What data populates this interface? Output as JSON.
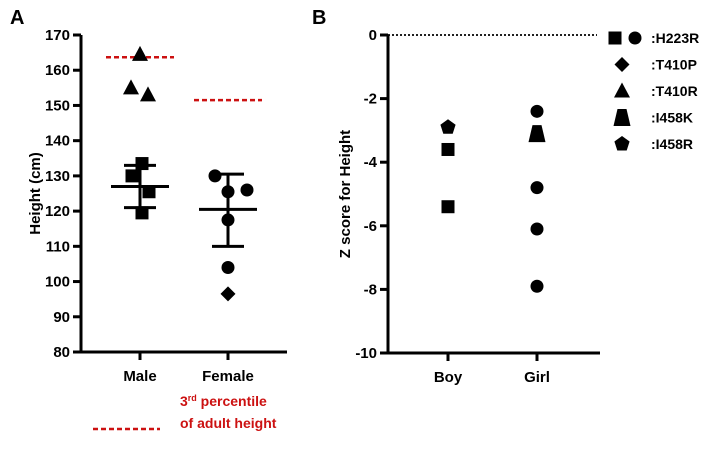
{
  "chart_data": [
    {
      "panel": "A",
      "type": "scatter",
      "ylabel": "Height (cm)",
      "xlabel": "",
      "ylim": [
        80,
        170
      ],
      "yticks": [
        "80",
        "90",
        "100",
        "110",
        "120",
        "130",
        "140",
        "150",
        "160",
        "170"
      ],
      "categories": [
        "Male",
        "Female"
      ],
      "groups": [
        {
          "category": "Male",
          "mean": 127,
          "error_upper": 133,
          "error_lower": 121,
          "reference_line": 163.7,
          "points": [
            {
              "shape": "triangle",
              "value": 164.5
            },
            {
              "shape": "triangle",
              "value": 155
            },
            {
              "shape": "triangle",
              "value": 153
            },
            {
              "shape": "square",
              "value": 133.5
            },
            {
              "shape": "square",
              "value": 130
            },
            {
              "shape": "square",
              "value": 125.5
            },
            {
              "shape": "square",
              "value": 119.5
            }
          ]
        },
        {
          "category": "Female",
          "mean": 120.5,
          "error_upper": 130.5,
          "error_lower": 110,
          "reference_line": 151.5,
          "points": [
            {
              "shape": "circle",
              "value": 130
            },
            {
              "shape": "circle",
              "value": 125.5
            },
            {
              "shape": "circle",
              "value": 126
            },
            {
              "shape": "circle",
              "value": 117.5
            },
            {
              "shape": "circle",
              "value": 104
            },
            {
              "shape": "diamond",
              "value": 96.5
            }
          ]
        }
      ],
      "legend": {
        "line_label_sup": "rd",
        "line_label_1": "3",
        "line_label_2": " percentile",
        "line_label_3": "of adult height",
        "color": "#cc1111"
      },
      "reference_color": "#cc1111"
    },
    {
      "panel": "B",
      "type": "scatter",
      "ylabel": "Z score for Height",
      "xlabel": "",
      "ylim": [
        -10,
        0
      ],
      "yticks": [
        "-10",
        "-8",
        "-6",
        "-4",
        "-2",
        "0"
      ],
      "reference_line": 0,
      "categories": [
        "Boy",
        "Girl"
      ],
      "groups": [
        {
          "category": "Boy",
          "points": [
            {
              "shape": "pentagon",
              "value": -2.9
            },
            {
              "shape": "square",
              "value": -3.6
            },
            {
              "shape": "square",
              "value": -5.4
            }
          ]
        },
        {
          "category": "Girl",
          "points": [
            {
              "shape": "circle",
              "value": -2.4
            },
            {
              "shape": "trapezoid",
              "value": -3.1
            },
            {
              "shape": "circle",
              "value": -4.8
            },
            {
              "shape": "circle",
              "value": -6.1
            },
            {
              "shape": "circle",
              "value": -7.9
            }
          ]
        }
      ],
      "legend": [
        {
          "shapes": [
            "square",
            "circle"
          ],
          "label": ":H223R"
        },
        {
          "shapes": [
            "diamond"
          ],
          "label": ":T410P"
        },
        {
          "shapes": [
            "triangle"
          ],
          "label": ":T410R"
        },
        {
          "shapes": [
            "trapezoid"
          ],
          "label": ":I458K"
        },
        {
          "shapes": [
            "pentagon"
          ],
          "label": ":I458R"
        }
      ]
    }
  ],
  "panel_labels": [
    "A",
    "B"
  ]
}
